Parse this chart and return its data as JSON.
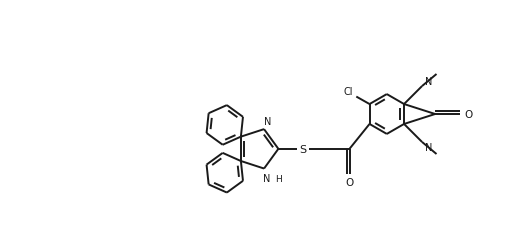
{
  "bg": "#ffffff",
  "lc": "#1a1a1a",
  "lw": 1.4,
  "fs": 7.0,
  "fig_w": 5.05,
  "fig_h": 2.3,
  "dpi": 100,
  "xlim": [
    0,
    10.5
  ],
  "ylim": [
    0,
    4.6
  ]
}
